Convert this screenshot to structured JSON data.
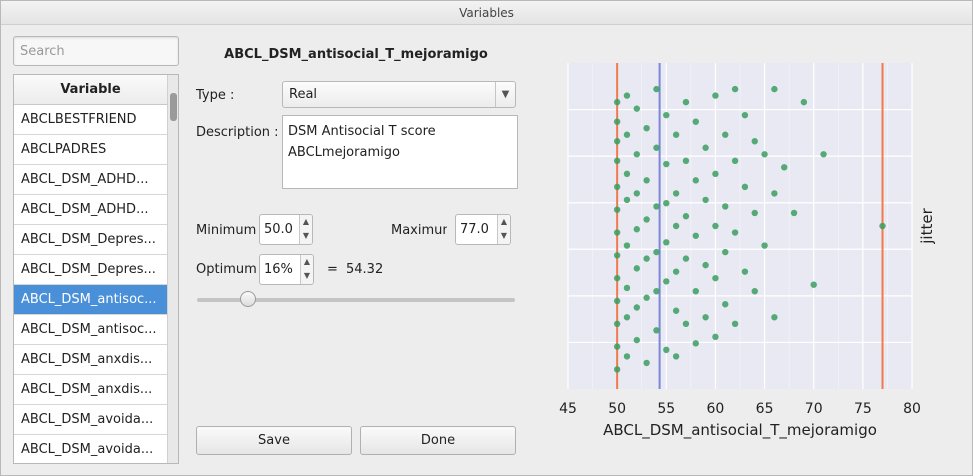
{
  "window": {
    "title": "Variables"
  },
  "search": {
    "placeholder": "Search"
  },
  "list": {
    "header": "Variable",
    "items": [
      "ABCLBESTFRIEND",
      "ABCLPADRES",
      "ABCL_DSM_ADHD...",
      "ABCL_DSM_ADHD...",
      "ABCL_DSM_Depres...",
      "ABCL_DSM_Depres...",
      "ABCL_DSM_antisoc...",
      "ABCL_DSM_antisoc...",
      "ABCL_DSM_anxdis...",
      "ABCL_DSM_anxdis...",
      "ABCL_DSM_avoida...",
      "ABCL_DSM_avoida..."
    ],
    "selected_index": 6
  },
  "form": {
    "variable_title": "ABCL_DSM_antisocial_T_mejoramigo",
    "type_label": "Type :",
    "type_value": "Real",
    "description_label": "Description :",
    "description_line1": "DSM Antisocial T score",
    "description_line2": "ABCLmejoramigo",
    "minimum_label": "Minimum",
    "minimum_value": "50.0",
    "maximum_label": "Maximum",
    "maximum_value": "77.0",
    "optimum_label": "Optimum",
    "optimum_value": "16%",
    "equals": "=",
    "optimum_result": "54.32",
    "slider_fraction": 0.16
  },
  "buttons": {
    "save": "Save",
    "done": "Done"
  },
  "colors": {
    "points": "#3a9e5f",
    "minmax_line": "#f07a4a",
    "optimum_line": "#7b86d6",
    "plot_bg": "#e9e9f3"
  },
  "chart_data": {
    "type": "scatter",
    "xlabel": "ABCL_DSM_antisocial_T_mejoramigo",
    "ylabel": "jitter",
    "xlim": [
      45,
      80
    ],
    "xticks": [
      45,
      50,
      55,
      60,
      65,
      70,
      75,
      80
    ],
    "vlines": {
      "minimum": 50,
      "optimum": 54.32,
      "maximum": 77
    },
    "grid": true,
    "points": [
      [
        50,
        0.88
      ],
      [
        50,
        0.82
      ],
      [
        50,
        0.76
      ],
      [
        50,
        0.7
      ],
      [
        50,
        0.62
      ],
      [
        50,
        0.55
      ],
      [
        50,
        0.48
      ],
      [
        50,
        0.41
      ],
      [
        50,
        0.34
      ],
      [
        50,
        0.27
      ],
      [
        50,
        0.2
      ],
      [
        50,
        0.13
      ],
      [
        50,
        0.06
      ],
      [
        51,
        0.9
      ],
      [
        51,
        0.78
      ],
      [
        51,
        0.66
      ],
      [
        51,
        0.58
      ],
      [
        51,
        0.44
      ],
      [
        51,
        0.31
      ],
      [
        51,
        0.22
      ],
      [
        51,
        0.1
      ],
      [
        52,
        0.86
      ],
      [
        52,
        0.72
      ],
      [
        52,
        0.6
      ],
      [
        52,
        0.49
      ],
      [
        52,
        0.37
      ],
      [
        52,
        0.25
      ],
      [
        52,
        0.15
      ],
      [
        53,
        0.8
      ],
      [
        53,
        0.64
      ],
      [
        53,
        0.52
      ],
      [
        53,
        0.4
      ],
      [
        53,
        0.28
      ],
      [
        53,
        0.08
      ],
      [
        54,
        0.92
      ],
      [
        54,
        0.74
      ],
      [
        54,
        0.56
      ],
      [
        54,
        0.42
      ],
      [
        54,
        0.3
      ],
      [
        54,
        0.18
      ],
      [
        55,
        0.84
      ],
      [
        55,
        0.69
      ],
      [
        55,
        0.57
      ],
      [
        55,
        0.45
      ],
      [
        55,
        0.33
      ],
      [
        55,
        0.12
      ],
      [
        56,
        0.78
      ],
      [
        56,
        0.6
      ],
      [
        56,
        0.5
      ],
      [
        56,
        0.36
      ],
      [
        56,
        0.24
      ],
      [
        56,
        0.1
      ],
      [
        57,
        0.88
      ],
      [
        57,
        0.7
      ],
      [
        57,
        0.53
      ],
      [
        57,
        0.4
      ],
      [
        57,
        0.2
      ],
      [
        58,
        0.82
      ],
      [
        58,
        0.64
      ],
      [
        58,
        0.47
      ],
      [
        58,
        0.3
      ],
      [
        58,
        0.14
      ],
      [
        59,
        0.74
      ],
      [
        59,
        0.58
      ],
      [
        59,
        0.38
      ],
      [
        59,
        0.22
      ],
      [
        60,
        0.9
      ],
      [
        60,
        0.66
      ],
      [
        60,
        0.5
      ],
      [
        60,
        0.34
      ],
      [
        60,
        0.16
      ],
      [
        61,
        0.78
      ],
      [
        61,
        0.56
      ],
      [
        61,
        0.42
      ],
      [
        61,
        0.26
      ],
      [
        62,
        0.92
      ],
      [
        62,
        0.7
      ],
      [
        62,
        0.48
      ],
      [
        62,
        0.2
      ],
      [
        63,
        0.84
      ],
      [
        63,
        0.62
      ],
      [
        63,
        0.36
      ],
      [
        64,
        0.76
      ],
      [
        64,
        0.54
      ],
      [
        64,
        0.3
      ],
      [
        65,
        0.72
      ],
      [
        65,
        0.44
      ],
      [
        66,
        0.92
      ],
      [
        66,
        0.6
      ],
      [
        66,
        0.22
      ],
      [
        67,
        0.68
      ],
      [
        68,
        0.54
      ],
      [
        69,
        0.88
      ],
      [
        70,
        0.32
      ],
      [
        71,
        0.72
      ],
      [
        77,
        0.5
      ]
    ]
  }
}
